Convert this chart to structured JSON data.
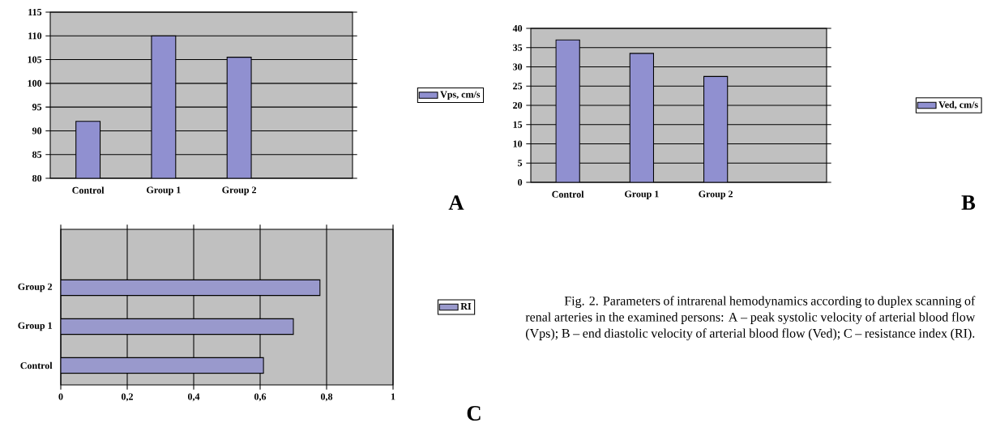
{
  "chart_data": [
    {
      "type": "bar",
      "categories": [
        "Control",
        "Group 1",
        "Group 2"
      ],
      "series": [
        {
          "name": "Vps, cm/s",
          "color": "#9090d0",
          "values": [
            92,
            110,
            105.5
          ]
        }
      ],
      "ylim": [
        80,
        115
      ],
      "yticks": [
        80,
        85,
        90,
        95,
        100,
        105,
        110,
        115
      ],
      "grid": "y",
      "legend": "right",
      "annotations": [
        "A"
      ]
    },
    {
      "type": "bar",
      "categories": [
        "Control",
        "Group 1",
        "Group 2"
      ],
      "series": [
        {
          "name": "Ved, cm/s",
          "color": "#9090d0",
          "values": [
            37,
            33.5,
            27.5
          ]
        }
      ],
      "ylim": [
        0,
        40
      ],
      "yticks": [
        0,
        5,
        10,
        15,
        20,
        25,
        30,
        35,
        40
      ],
      "grid": "y",
      "legend": "right",
      "annotations": [
        "B"
      ]
    },
    {
      "type": "bar",
      "orientation": "horizontal",
      "categories": [
        "Group 2",
        "Group 1",
        "Control"
      ],
      "series": [
        {
          "name": "RI",
          "color": "#9999cc",
          "values": [
            0.78,
            0.7,
            0.61
          ]
        }
      ],
      "xlim": [
        0,
        1
      ],
      "xticks": [
        0,
        {
          "value": 0.2,
          "label": "0,2"
        },
        {
          "value": 0.4,
          "label": "0,4"
        },
        {
          "value": 0.6,
          "label": "0,6"
        },
        {
          "value": 0.8,
          "label": "0,8"
        },
        1
      ],
      "grid": "x",
      "legend": "right",
      "annotations": [
        "C",
        "Fig. 2. Parameters of intrarenal hemodynamics according to duplex scanning of renal arteries in the examined persons: A – peak systolic velocity of arterial blood flow (Vps); B – end diastolic velocity of arterial blood flow (Ved); C – resistance index (RI)."
      ]
    }
  ]
}
